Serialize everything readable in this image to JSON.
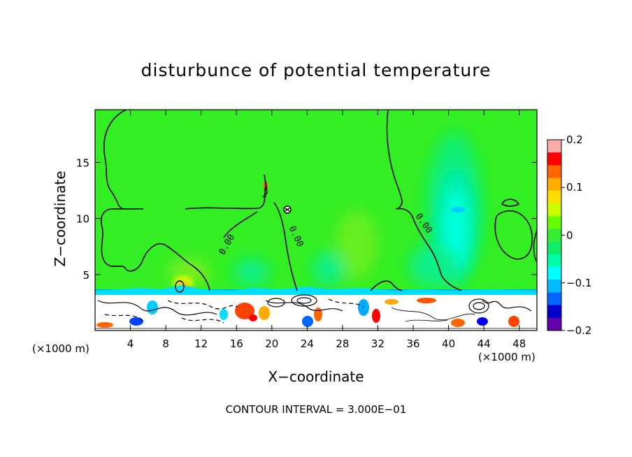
{
  "chart_data": {
    "type": "heatmap",
    "title": "disturbunce of potential temperature",
    "xlabel": "X−coordinate",
    "ylabel": "Z−coordinate",
    "x_unit": "(×1000 m)",
    "y_unit": "(×1000 m)",
    "x_ticks": [
      4,
      8,
      12,
      16,
      20,
      24,
      28,
      32,
      36,
      40,
      44,
      48
    ],
    "y_ticks": [
      5,
      10,
      15
    ],
    "xlim": [
      0,
      50
    ],
    "ylim": [
      0,
      19.7
    ],
    "colorbar": {
      "ticks": [
        "0.2",
        "0.1",
        "0",
        "−0.1",
        "−0.2"
      ],
      "range": [
        -0.2,
        0.2
      ],
      "colors": [
        "#ffaaaa",
        "#ff0000",
        "#ff6600",
        "#ffaa00",
        "#ffdd00",
        "#ccff00",
        "#66ff00",
        "#33ee33",
        "#11ee66",
        "#00ffaa",
        "#00ffff",
        "#00bbff",
        "#0066ff",
        "#0000cc",
        "#6600aa"
      ]
    },
    "contour_label": "0.00",
    "annotation": "CONTOUR INTERVAL = 3.000E−01"
  }
}
